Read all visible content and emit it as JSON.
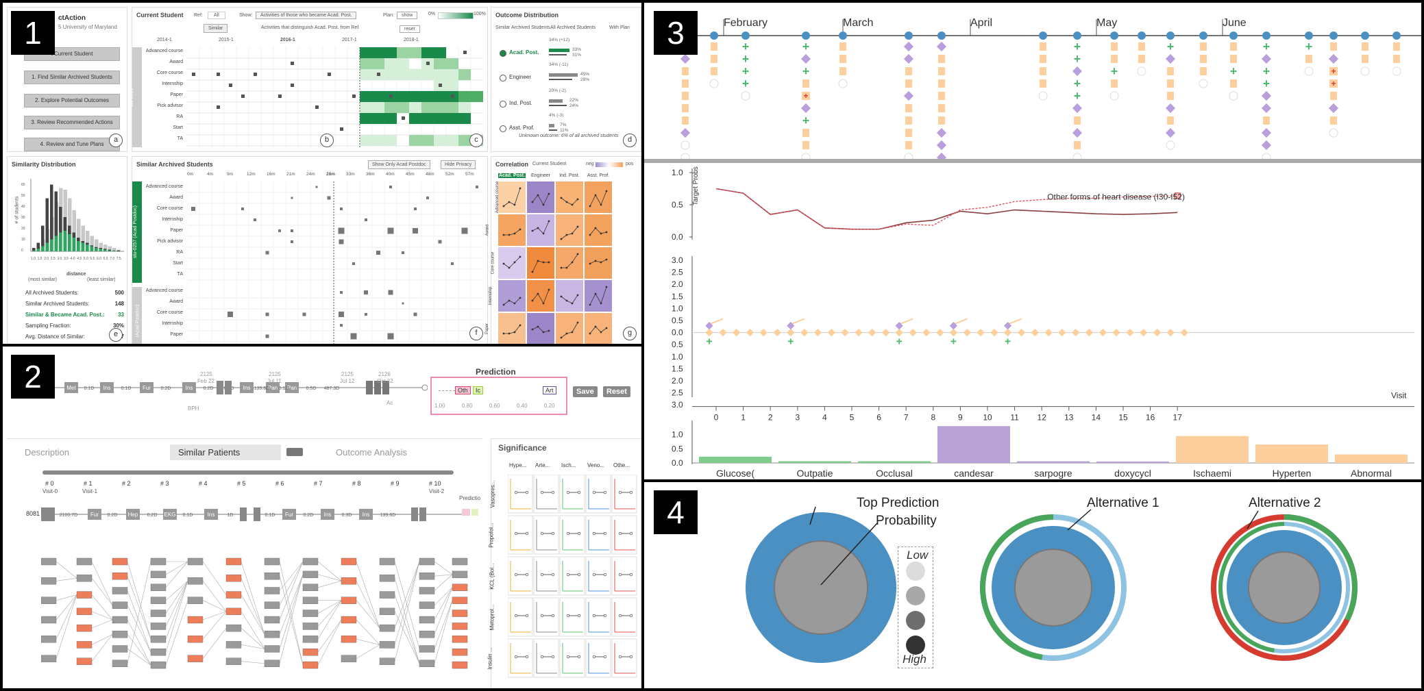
{
  "quadrant_labels": [
    "1",
    "2",
    "3",
    "4"
  ],
  "q1": {
    "app_title": "ctAction",
    "app_subtitle": "5 University of Maryland",
    "steps": [
      "t Current Student",
      "1. Find Similar Archived Students",
      "2. Explore Potential Outcomes",
      "3. Review Recommended Actions",
      "4. Review and Tune Plans"
    ],
    "panel_tags": [
      "a",
      "b",
      "c",
      "d",
      "e",
      "f",
      "g"
    ],
    "current_student": {
      "title": "Current Student",
      "ref_label": "Ref:",
      "ref_value": "All",
      "similar_button": "Similar",
      "show_label": "Show:",
      "show_value": "Activities of those who became Acad. Post.",
      "distinguish_text": "Activities that distinguish Acad. Post. from Ref",
      "plan_label": "Plan:",
      "plan_button": "show",
      "reset_button": "reset",
      "legend_min": "0%",
      "legend_max": "100%",
      "years": [
        "2014-1",
        "2015-1",
        "2016-1",
        "2017-1",
        "2018-1"
      ],
      "student_id": "stu-0001",
      "rows": [
        "Advanced course",
        "Award",
        "Core course",
        "Internship",
        "Paper",
        "Pick advisor",
        "RA",
        "Start",
        "TA"
      ]
    },
    "outcome": {
      "title": "Outcome Distribution",
      "legend_similar": "Similar Archived Students",
      "legend_all": "All Archived Students",
      "legend_plan": "With Plan",
      "items": [
        {
          "name": "Acad. Post.",
          "plan": "34% (+12)",
          "similar": "33%",
          "all": "31%"
        },
        {
          "name": "Engineer",
          "plan": "34% (-11)",
          "similar": "45%",
          "all": "29%"
        },
        {
          "name": "Ind. Post.",
          "plan": "20% (-2)",
          "similar": "22%",
          "all": "24%"
        },
        {
          "name": "Asst. Prof.",
          "plan": "4% (-3)",
          "similar": "7%",
          "all": "11%"
        }
      ],
      "footnote": "Unknown outcome: 6% of all archived students"
    },
    "similarity": {
      "title": "Similarity Distribution",
      "ylabel": "# of students",
      "xlabel": "distance",
      "most_similar": "(most similar)",
      "least_similar": "(least similar)",
      "stats": [
        {
          "label": "All Archived Students:",
          "value": "500"
        },
        {
          "label": "Similar Archived Students:",
          "value": "148"
        },
        {
          "label": "Similar & Became Acad. Post.:",
          "value": "33"
        },
        {
          "label": "Sampling Fraction:",
          "value": "30%"
        },
        {
          "label": "Avg. Distance of Similar:",
          "value": "2.87"
        }
      ]
    },
    "archived": {
      "title": "Similar Archived Students",
      "show_only_button": "Show Only Acad Postdoc",
      "hide_privacy_button": "Hide Privacy",
      "months": [
        "0m",
        "4m",
        "9m",
        "12m",
        "16m",
        "21m",
        "24m",
        "28m",
        "33m",
        "36m",
        "40m",
        "45m",
        "48m",
        "52m",
        "57m"
      ],
      "student_a": "stu-0257 (Acad Postdoc)",
      "student_b": "(Acad Postdoc)",
      "rows_a": [
        "Advanced course",
        "Award",
        "Core course",
        "Internship",
        "Paper",
        "Pick advisor",
        "RA",
        "Start",
        "TA"
      ],
      "rows_b": [
        "Advanced course",
        "Award",
        "Core course",
        "Internship",
        "Paper"
      ]
    },
    "correlation": {
      "title": "Correlation",
      "legend_current": "Current Student",
      "legend_neg": "neg",
      "legend_pos": "pos",
      "columns": [
        "Acad. Post.",
        "Engineer",
        "Ind. Post.",
        "Asst. Prof."
      ],
      "rows": [
        "Advanced course",
        "Award",
        "Core course",
        "Internship",
        "Paper"
      ]
    }
  },
  "q2": {
    "timeline_nodes": [
      "Met",
      "Ins",
      "Fur",
      "Ins",
      "Ins",
      "Pan",
      "Pan"
    ],
    "timeline_gaps": [
      "0.1D",
      "0.1D",
      "0.2D",
      "0.2D",
      "0.3D",
      "139.6D",
      "0.1D",
      "0.5D",
      "487.3D"
    ],
    "timeline_dates": [
      {
        "year": "2125",
        "date": "Feb 22"
      },
      {
        "year": "2125",
        "date": "Jul 11"
      },
      {
        "year": "2125",
        "date": "Jul 12"
      },
      {
        "year": "2126",
        "date": "Oct 22"
      }
    ],
    "bph_label": "BPH",
    "ac_label": "Ac",
    "prediction_title": "Prediction",
    "prediction_boxes": [
      "Oth",
      "Ic",
      "Art"
    ],
    "prediction_axis": [
      "1.00",
      "0.80",
      "0.60",
      "0.40",
      "0.20"
    ],
    "save_button": "Save",
    "reset_button": "Reset",
    "tabs": [
      "Description",
      "Similar Patients",
      "Outcome Analysis"
    ],
    "significance_title": "Significance",
    "significance_cols": [
      "Hype...",
      "Arte...",
      "Isch...",
      "Veno...",
      "Othe..."
    ],
    "significance_rows": [
      "Vasopres...",
      "Propofol...",
      "KCL (Bol...",
      "Metoprol...",
      "Insulin ..."
    ],
    "visits": [
      "# 0",
      "# 1",
      "# 2",
      "# 3",
      "# 4",
      "# 5",
      "# 6",
      "# 7",
      "# 8",
      "# 9",
      "# 10"
    ],
    "visit_sub": [
      "Visit-0",
      "Visit-1",
      "Visit-2"
    ],
    "patient_id": "8081",
    "patient_nodes": [
      "Fur",
      "Hep",
      "EKG",
      "Ins",
      "Fur",
      "Ins",
      "Ins"
    ],
    "patient_gaps": [
      "2100.7D",
      "0.2D",
      "0.2D",
      "0.1D",
      "1D",
      "0.1D",
      "0.2D",
      "0.3D",
      "139.6D"
    ],
    "prediction_col": "Predictio"
  },
  "q3": {
    "months": [
      "February",
      "March",
      "April",
      "May",
      "June"
    ],
    "y1_label": "Target Probs",
    "y1_ticks": [
      "1.0",
      "0.5",
      "0.0"
    ],
    "annotation": "Other forms of heart disease (I30-I52)",
    "y2_ticks": [
      "3.0",
      "2.5",
      "2.0",
      "1.5",
      "1.0",
      "0.5",
      "0.0",
      "0.5",
      "1.0",
      "1.5",
      "2.0",
      "2.5",
      "3.0"
    ],
    "x_ticks": [
      "0",
      "1",
      "2",
      "3",
      "4",
      "5",
      "6",
      "7",
      "8",
      "9",
      "10",
      "11",
      "12",
      "13",
      "14",
      "15",
      "16",
      "17"
    ],
    "x_label": "Visit",
    "y3_ticks": [
      "1.0",
      "0.5",
      "0.0"
    ],
    "chart_data": {
      "type": "bar",
      "categories": [
        "Glucose(",
        "Outpatie",
        "Occlusal",
        "candesar",
        "sarpogre",
        "doxycycl",
        "Ischaemi",
        "Hyperten",
        "Abnormal"
      ],
      "values": [
        0.22,
        0.06,
        0.06,
        1.3,
        0.06,
        0.05,
        0.95,
        0.65,
        0.3
      ],
      "colors": [
        "#7fcc8c",
        "#7fcc8c",
        "#7fcc8c",
        "#b9a3d6",
        "#b9a3d6",
        "#b9a3d6",
        "#fdcf9c",
        "#fdcf9c",
        "#fdcf9c"
      ],
      "ylim": [
        0,
        1.4
      ]
    },
    "line_data": {
      "type": "line",
      "visits": [
        0,
        1,
        2,
        3,
        4,
        5,
        6,
        7,
        8,
        9,
        10,
        11,
        12,
        13,
        14,
        15,
        16,
        17
      ],
      "actual": [
        0.75,
        0.68,
        0.35,
        0.42,
        0.14,
        0.12,
        0.12,
        0.22,
        0.26,
        0.4,
        0.36,
        0.42,
        0.4,
        0.38,
        0.36,
        0.35,
        0.36,
        0.38
      ],
      "predicted": [
        0.75,
        0.68,
        0.35,
        0.42,
        0.14,
        0.12,
        0.12,
        0.2,
        0.18,
        0.42,
        0.46,
        0.55,
        0.58,
        0.6,
        0.6,
        0.62,
        0.63,
        0.64
      ]
    }
  },
  "q4": {
    "labels": [
      "Top Prediction",
      "Probability",
      "Alternative 1",
      "Alternative 2"
    ],
    "legend_low": "Low",
    "legend_high": "High",
    "legend_colors": [
      "#dcdcdc",
      "#a8a8a8",
      "#6e6e6e",
      "#333333"
    ],
    "colors": {
      "blue": "#4a90c2",
      "light_blue": "#8fc3e3",
      "green": "#47a65a",
      "red": "#d53b2f",
      "gray": "#9a9a9a"
    }
  }
}
